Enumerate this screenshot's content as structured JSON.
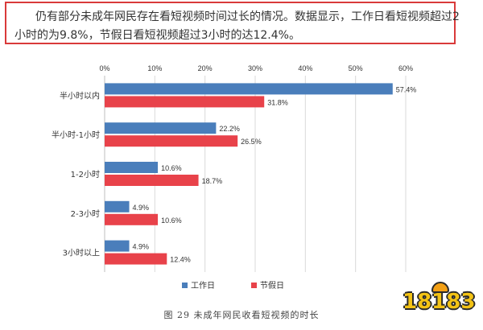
{
  "intro": {
    "line1": "仍有部分未成年网民存在看短视频时间过长的情况。数据显示，工作日看短视频超过2",
    "line2": "小时的为9.8%，节假日看短视频超过3小时的达12.4%。"
  },
  "caption": "图 29 未成年网民收看短视频的时长",
  "logo": {
    "text": "18183"
  },
  "colors": {
    "workday": "#4a7ebb",
    "holiday": "#e8424a",
    "grid": "#d9d9d9"
  },
  "chart_data": {
    "type": "bar",
    "orientation": "horizontal",
    "categories": [
      "半小时以内",
      "半小时-1小时",
      "1-2小时",
      "2-3小时",
      "3小时以上"
    ],
    "series": [
      {
        "name": "工作日",
        "values": [
          57.4,
          22.2,
          10.6,
          4.9,
          4.9
        ]
      },
      {
        "name": "节假日",
        "values": [
          31.8,
          26.5,
          18.7,
          10.6,
          12.4
        ]
      }
    ],
    "x_ticks": [
      "0%",
      "10%",
      "20%",
      "30%",
      "40%",
      "50%",
      "60%"
    ],
    "xlim": [
      0,
      60
    ],
    "unit": "%",
    "grid": true,
    "legend_position": "bottom"
  }
}
